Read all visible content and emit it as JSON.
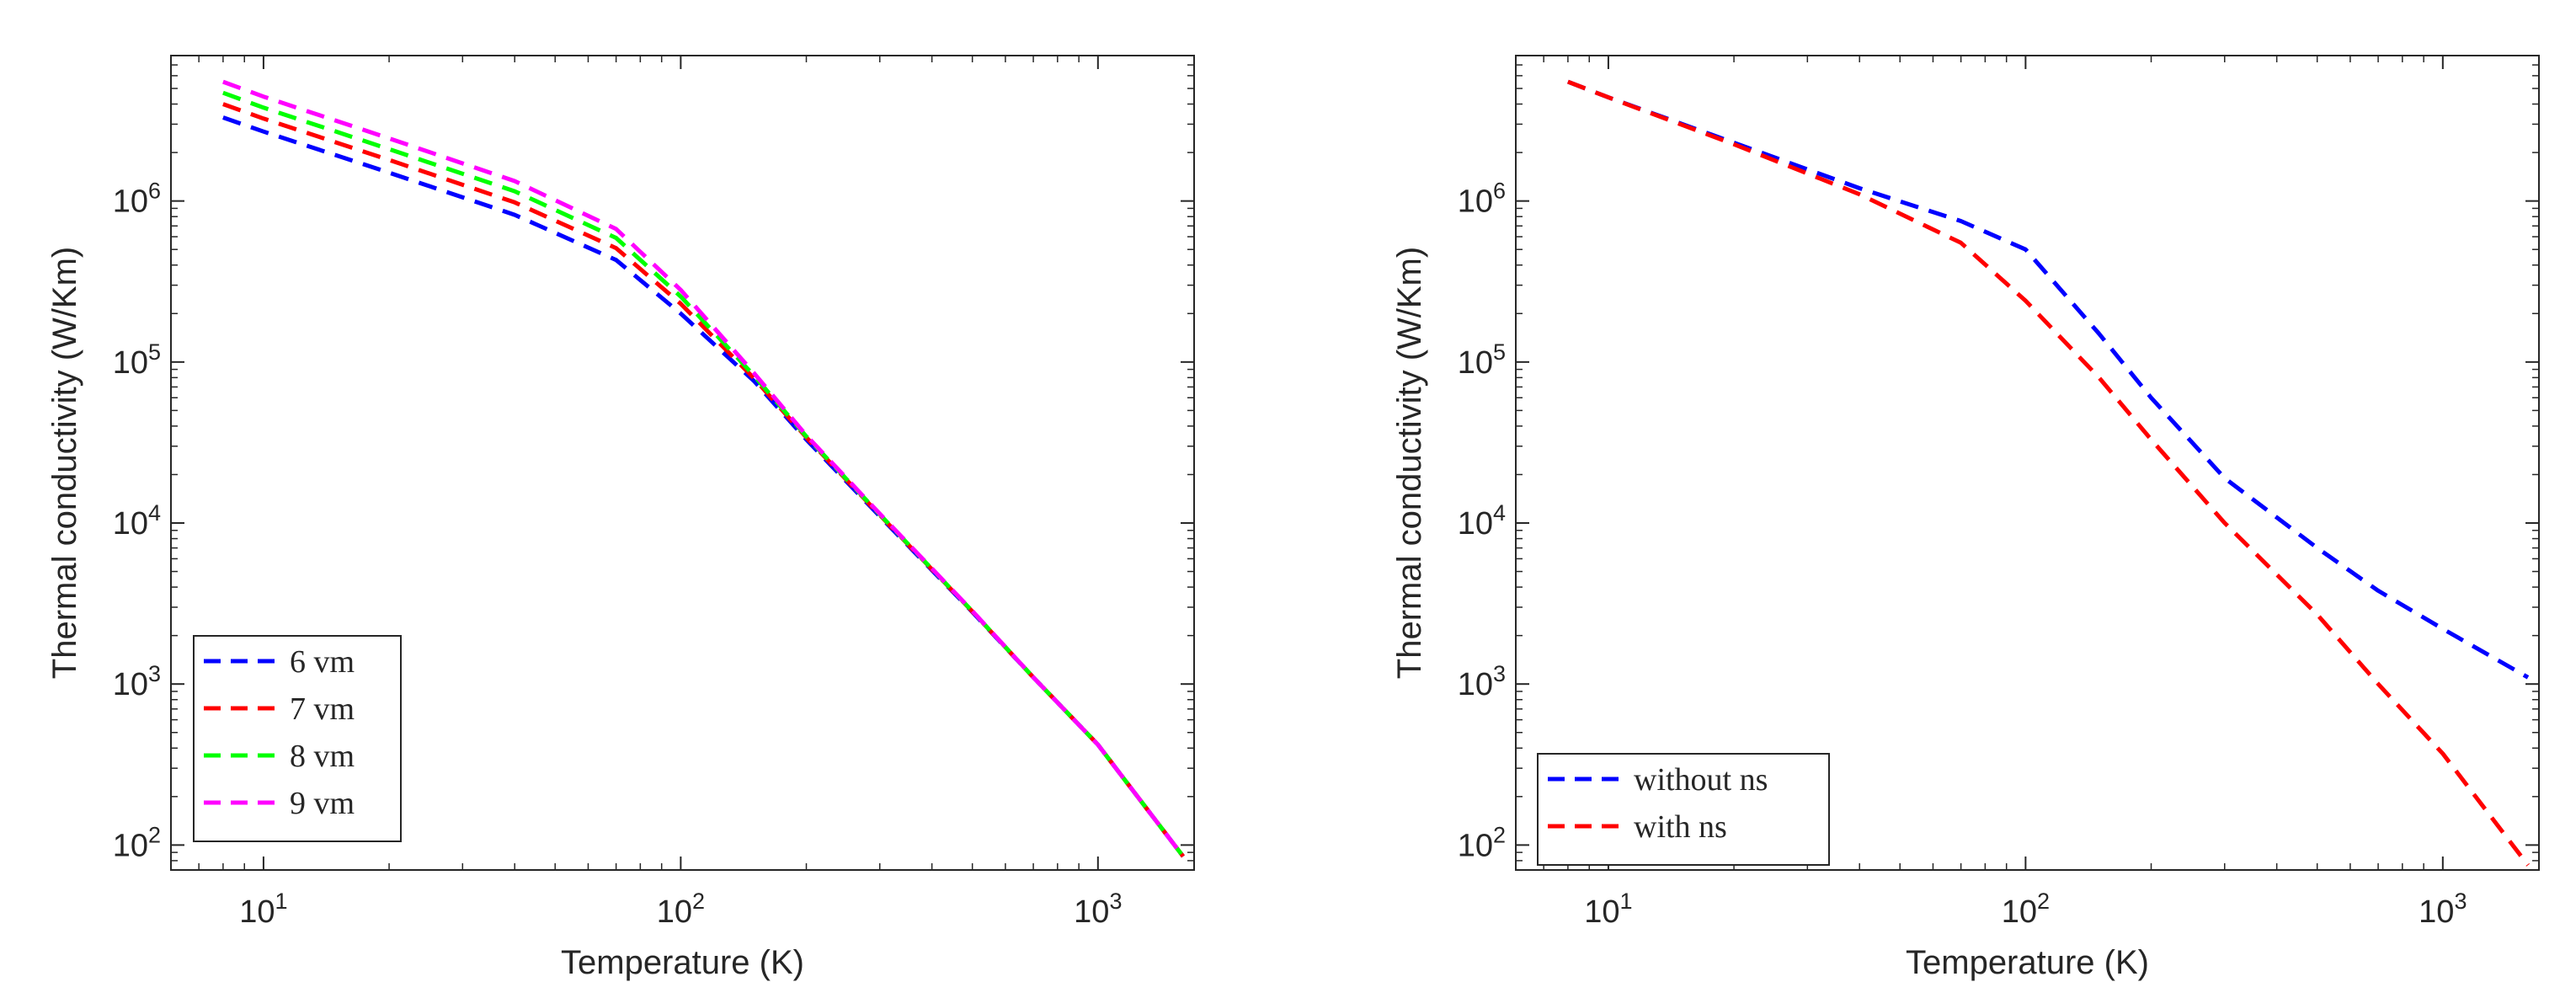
{
  "chart_data": [
    {
      "type": "line",
      "xscale": "log",
      "yscale": "log",
      "xlabel": "Temperature (K)",
      "ylabel": "Thermal conductivity (W/Km)",
      "xlim": [
        6,
        1700
      ],
      "ylim": [
        70,
        8000000
      ],
      "xticks": [
        {
          "value": 10,
          "base": "10",
          "exp": "1"
        },
        {
          "value": 100,
          "base": "10",
          "exp": "2"
        },
        {
          "value": 1000,
          "base": "10",
          "exp": "3"
        }
      ],
      "yticks": [
        {
          "value": 100,
          "base": "10",
          "exp": "2"
        },
        {
          "value": 1000,
          "base": "10",
          "exp": "3"
        },
        {
          "value": 10000,
          "base": "10",
          "exp": "4"
        },
        {
          "value": 100000,
          "base": "10",
          "exp": "5"
        },
        {
          "value": 1000000,
          "base": "10",
          "exp": "6"
        }
      ],
      "legend_location": "bottom-left",
      "series": [
        {
          "name": "6 vm",
          "color": "#0000ff",
          "x": [
            8,
            10,
            20,
            40,
            70,
            100,
            150,
            200,
            300,
            500,
            700,
            1000,
            1600
          ],
          "y": [
            3300000,
            2700000,
            1500000,
            820000,
            430000,
            200000,
            76000,
            33000,
            11000,
            2800,
            1100,
            420,
            85
          ]
        },
        {
          "name": "7 vm",
          "color": "#ff0000",
          "x": [
            8,
            10,
            20,
            40,
            70,
            100,
            150,
            200,
            300,
            500,
            700,
            1000,
            1600
          ],
          "y": [
            4000000,
            3250000,
            1800000,
            980000,
            510000,
            230000,
            79000,
            34000,
            11200,
            2820,
            1100,
            420,
            85
          ]
        },
        {
          "name": "8 vm",
          "color": "#00ff00",
          "x": [
            8,
            10,
            20,
            40,
            70,
            100,
            150,
            200,
            300,
            500,
            700,
            1000,
            1600
          ],
          "y": [
            4700000,
            3800000,
            2100000,
            1150000,
            590000,
            255000,
            82000,
            34500,
            11300,
            2830,
            1100,
            420,
            85
          ]
        },
        {
          "name": "9 vm",
          "color": "#ff00ff",
          "x": [
            8,
            10,
            20,
            40,
            70,
            100,
            150,
            200,
            300,
            500,
            700,
            1000,
            1600
          ],
          "y": [
            5500000,
            4450000,
            2450000,
            1330000,
            670000,
            280000,
            85000,
            35000,
            11400,
            2840,
            1100,
            420,
            85
          ]
        }
      ]
    },
    {
      "type": "line",
      "xscale": "log",
      "yscale": "log",
      "xlabel": "Temperature (K)",
      "ylabel": "Thermal conductivity (W/Km)",
      "xlim": [
        6,
        1700
      ],
      "ylim": [
        70,
        8000000
      ],
      "xticks": [
        {
          "value": 10,
          "base": "10",
          "exp": "1"
        },
        {
          "value": 100,
          "base": "10",
          "exp": "2"
        },
        {
          "value": 1000,
          "base": "10",
          "exp": "3"
        }
      ],
      "yticks": [
        {
          "value": 100,
          "base": "10",
          "exp": "2"
        },
        {
          "value": 1000,
          "base": "10",
          "exp": "3"
        },
        {
          "value": 10000,
          "base": "10",
          "exp": "4"
        },
        {
          "value": 100000,
          "base": "10",
          "exp": "5"
        },
        {
          "value": 1000000,
          "base": "10",
          "exp": "6"
        }
      ],
      "legend_location": "bottom-left",
      "series": [
        {
          "name": "without ns",
          "color": "#0000ff",
          "x": [
            8,
            10,
            20,
            40,
            70,
            100,
            150,
            200,
            300,
            500,
            700,
            1000,
            1600
          ],
          "y": [
            5500000,
            4400000,
            2300000,
            1200000,
            750000,
            500000,
            150000,
            60000,
            19000,
            7000,
            3800,
            2200,
            1100
          ]
        },
        {
          "name": "with ns",
          "color": "#ff0000",
          "x": [
            8,
            10,
            20,
            40,
            70,
            100,
            150,
            200,
            300,
            500,
            700,
            1000,
            1600
          ],
          "y": [
            5500000,
            4400000,
            2250000,
            1100000,
            550000,
            240000,
            80000,
            33000,
            10000,
            2700,
            1000,
            370,
            75
          ]
        }
      ]
    }
  ]
}
